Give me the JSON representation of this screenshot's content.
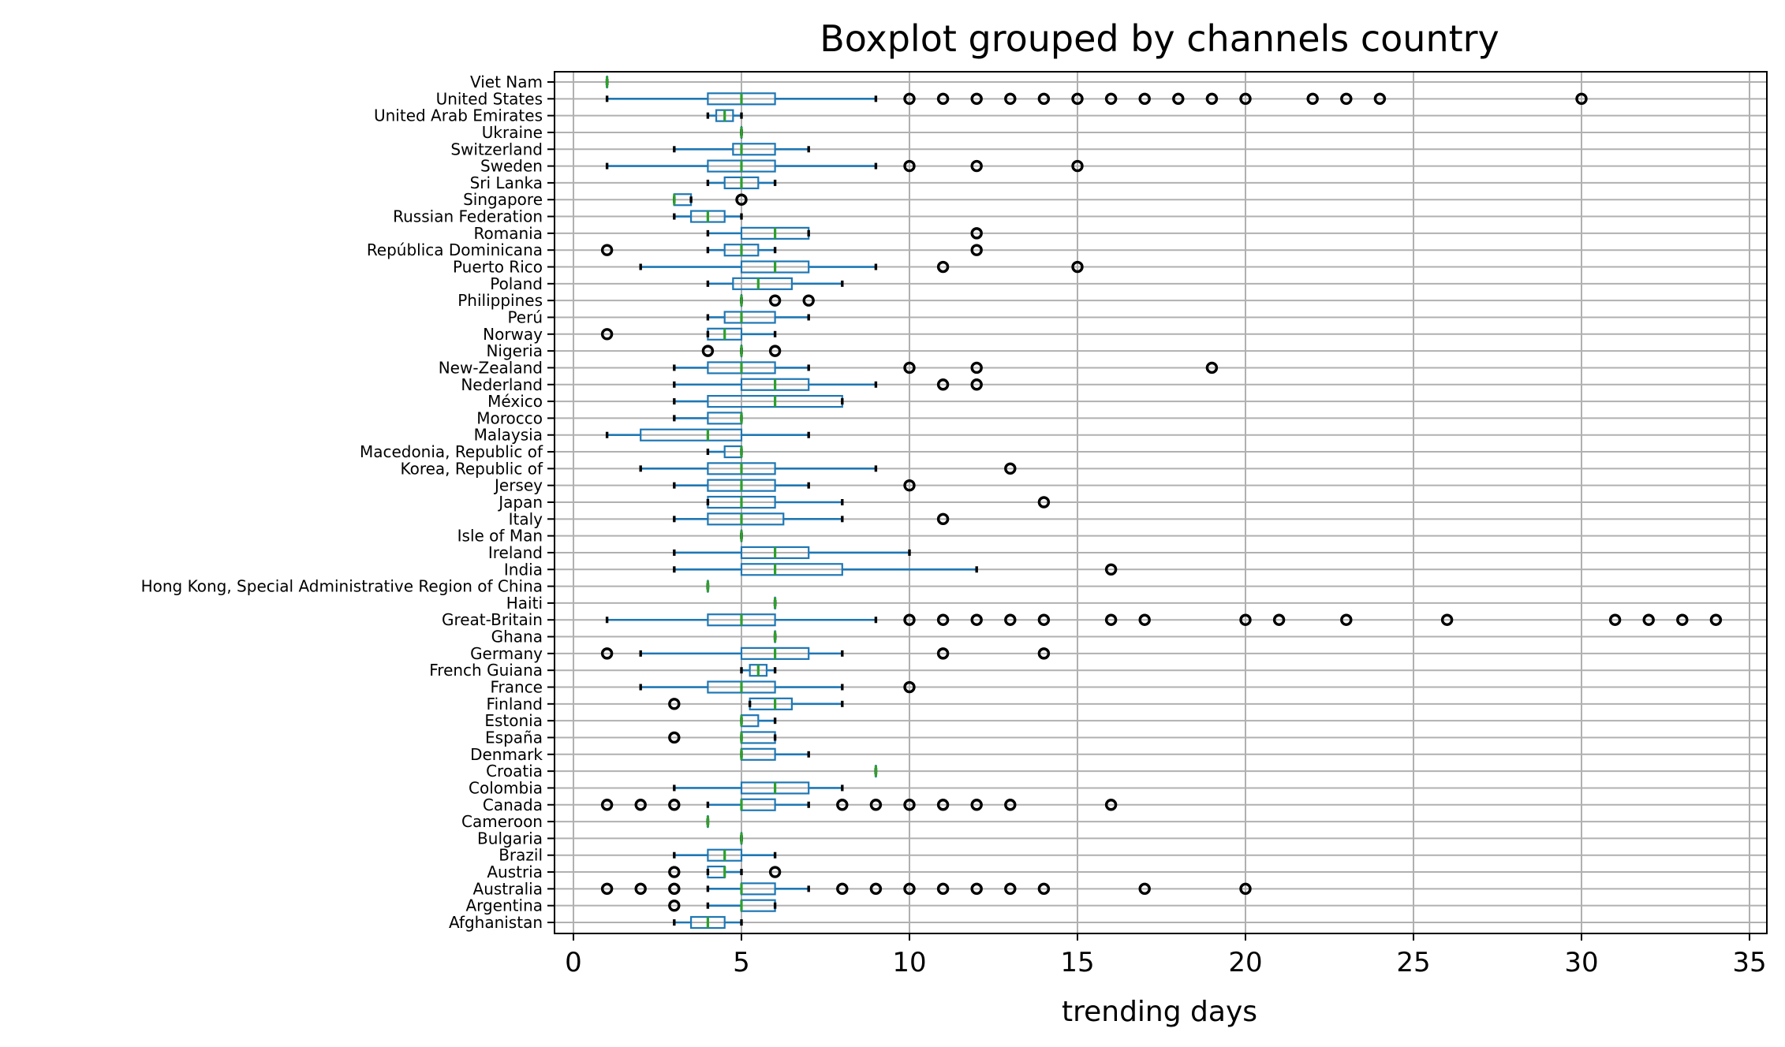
{
  "chart_data": {
    "type": "boxplot",
    "orientation": "horizontal",
    "title": "Boxplot grouped by channels country",
    "xlabel": "trending days",
    "xlim": [
      -0.7,
      35.6
    ],
    "xticks": [
      0,
      5,
      10,
      15,
      20,
      25,
      30,
      35
    ],
    "grid": true,
    "colors": {
      "box": "#1f77b4",
      "median": "#2ca02c",
      "cap": "#000000",
      "flier": "#000000",
      "grid": "#b0b0b0"
    },
    "groups": [
      {
        "label": "Afghanistan",
        "whislo": 3,
        "q1": 3.5,
        "median": 4,
        "q3": 4.5,
        "whishi": 5,
        "fliers": []
      },
      {
        "label": "Argentina",
        "whislo": 4,
        "q1": 5,
        "median": 5,
        "q3": 6,
        "whishi": 6,
        "fliers": [
          3
        ]
      },
      {
        "label": "Australia",
        "whislo": 4,
        "q1": 5,
        "median": 5,
        "q3": 6,
        "whishi": 7,
        "fliers": [
          1,
          2,
          3,
          8,
          9,
          10,
          11,
          12,
          13,
          14,
          17,
          20
        ]
      },
      {
        "label": "Austria",
        "whislo": 4,
        "q1": 4,
        "median": 4.5,
        "q3": 4.5,
        "whishi": 5,
        "fliers": [
          3,
          6
        ]
      },
      {
        "label": "Brazil",
        "whislo": 3,
        "q1": 4,
        "median": 4.5,
        "q3": 5,
        "whishi": 6,
        "fliers": []
      },
      {
        "label": "Bulgaria",
        "whislo": 5,
        "q1": 5,
        "median": 5,
        "q3": 5,
        "whishi": 5,
        "fliers": []
      },
      {
        "label": "Cameroon",
        "whislo": 4,
        "q1": 4,
        "median": 4,
        "q3": 4,
        "whishi": 4,
        "fliers": []
      },
      {
        "label": "Canada",
        "whislo": 4,
        "q1": 5,
        "median": 5,
        "q3": 6,
        "whishi": 7,
        "fliers": [
          1,
          2,
          3,
          8,
          9,
          10,
          11,
          12,
          13,
          16
        ]
      },
      {
        "label": "Colombia",
        "whislo": 3,
        "q1": 5,
        "median": 6,
        "q3": 7,
        "whishi": 8,
        "fliers": []
      },
      {
        "label": "Croatia",
        "whislo": 9,
        "q1": 9,
        "median": 9,
        "q3": 9,
        "whishi": 9,
        "fliers": []
      },
      {
        "label": "Denmark",
        "whislo": 5,
        "q1": 5,
        "median": 5,
        "q3": 6,
        "whishi": 7,
        "fliers": []
      },
      {
        "label": "España",
        "whislo": 5,
        "q1": 5,
        "median": 5,
        "q3": 6,
        "whishi": 6,
        "fliers": [
          3
        ]
      },
      {
        "label": "Estonia",
        "whislo": 5,
        "q1": 5,
        "median": 5,
        "q3": 5.5,
        "whishi": 6,
        "fliers": []
      },
      {
        "label": "Finland",
        "whislo": 5.25,
        "q1": 5.25,
        "median": 6,
        "q3": 6.5,
        "whishi": 8,
        "fliers": [
          3
        ]
      },
      {
        "label": "France",
        "whislo": 2,
        "q1": 4,
        "median": 5,
        "q3": 6,
        "whishi": 8,
        "fliers": [
          10
        ]
      },
      {
        "label": "French Guiana",
        "whislo": 5,
        "q1": 5.25,
        "median": 5.5,
        "q3": 5.75,
        "whishi": 6,
        "fliers": []
      },
      {
        "label": "Germany",
        "whislo": 2,
        "q1": 5,
        "median": 6,
        "q3": 7,
        "whishi": 8,
        "fliers": [
          1,
          11,
          14
        ]
      },
      {
        "label": "Ghana",
        "whislo": 6,
        "q1": 6,
        "median": 6,
        "q3": 6,
        "whishi": 6,
        "fliers": []
      },
      {
        "label": "Great-Britain",
        "whislo": 1,
        "q1": 4,
        "median": 5,
        "q3": 6,
        "whishi": 9,
        "fliers": [
          10,
          11,
          12,
          13,
          14,
          16,
          17,
          20,
          21,
          23,
          26,
          31,
          32,
          33,
          34
        ]
      },
      {
        "label": "Haiti",
        "whislo": 6,
        "q1": 6,
        "median": 6,
        "q3": 6,
        "whishi": 6,
        "fliers": []
      },
      {
        "label": "Hong Kong, Special Administrative Region of China",
        "whislo": 4,
        "q1": 4,
        "median": 4,
        "q3": 4,
        "whishi": 4,
        "fliers": []
      },
      {
        "label": "India",
        "whislo": 3,
        "q1": 5,
        "median": 6,
        "q3": 8,
        "whishi": 12,
        "fliers": [
          16
        ]
      },
      {
        "label": "Ireland",
        "whislo": 3,
        "q1": 5,
        "median": 6,
        "q3": 7,
        "whishi": 10,
        "fliers": []
      },
      {
        "label": "Isle of Man",
        "whislo": 5,
        "q1": 5,
        "median": 5,
        "q3": 5,
        "whishi": 5,
        "fliers": []
      },
      {
        "label": "Italy",
        "whislo": 3,
        "q1": 4,
        "median": 5,
        "q3": 6.25,
        "whishi": 8,
        "fliers": [
          11
        ]
      },
      {
        "label": "Japan",
        "whislo": 4,
        "q1": 4,
        "median": 5,
        "q3": 6,
        "whishi": 8,
        "fliers": [
          14
        ]
      },
      {
        "label": "Jersey",
        "whislo": 3,
        "q1": 4,
        "median": 5,
        "q3": 6,
        "whishi": 7,
        "fliers": [
          10
        ]
      },
      {
        "label": "Korea, Republic of",
        "whislo": 2,
        "q1": 4,
        "median": 5,
        "q3": 6,
        "whishi": 9,
        "fliers": [
          13
        ]
      },
      {
        "label": "Macedonia, Republic of",
        "whislo": 4,
        "q1": 4.5,
        "median": 5,
        "q3": 5,
        "whishi": 5,
        "fliers": []
      },
      {
        "label": "Malaysia",
        "whislo": 1,
        "q1": 2,
        "median": 4,
        "q3": 5,
        "whishi": 7,
        "fliers": []
      },
      {
        "label": "Morocco",
        "whislo": 3,
        "q1": 4,
        "median": 5,
        "q3": 5,
        "whishi": 5,
        "fliers": []
      },
      {
        "label": "México",
        "whislo": 3,
        "q1": 4,
        "median": 6,
        "q3": 8,
        "whishi": 8,
        "fliers": []
      },
      {
        "label": "Nederland",
        "whislo": 3,
        "q1": 5,
        "median": 6,
        "q3": 7,
        "whishi": 9,
        "fliers": [
          11,
          12
        ]
      },
      {
        "label": "New-Zealand",
        "whislo": 3,
        "q1": 4,
        "median": 5,
        "q3": 6,
        "whishi": 7,
        "fliers": [
          10,
          12,
          19
        ]
      },
      {
        "label": "Nigeria",
        "whislo": 5,
        "q1": 5,
        "median": 5,
        "q3": 5,
        "whishi": 5,
        "fliers": [
          4,
          6
        ]
      },
      {
        "label": "Norway",
        "whislo": 4,
        "q1": 4,
        "median": 4.5,
        "q3": 5,
        "whishi": 6,
        "fliers": [
          1
        ]
      },
      {
        "label": "Perú",
        "whislo": 4,
        "q1": 4.5,
        "median": 5,
        "q3": 6,
        "whishi": 7,
        "fliers": []
      },
      {
        "label": "Philippines",
        "whislo": 5,
        "q1": 5,
        "median": 5,
        "q3": 5,
        "whishi": 5,
        "fliers": [
          6,
          7
        ]
      },
      {
        "label": "Poland",
        "whislo": 4,
        "q1": 4.75,
        "median": 5.5,
        "q3": 6.5,
        "whishi": 8,
        "fliers": []
      },
      {
        "label": "Puerto Rico",
        "whislo": 2,
        "q1": 5,
        "median": 6,
        "q3": 7,
        "whishi": 9,
        "fliers": [
          11,
          15
        ]
      },
      {
        "label": "República Dominicana",
        "whislo": 4,
        "q1": 4.5,
        "median": 5,
        "q3": 5.5,
        "whishi": 6,
        "fliers": [
          1,
          12
        ]
      },
      {
        "label": "Romania",
        "whislo": 4,
        "q1": 5,
        "median": 6,
        "q3": 7,
        "whishi": 7,
        "fliers": [
          12
        ]
      },
      {
        "label": "Russian Federation",
        "whislo": 3,
        "q1": 3.5,
        "median": 4,
        "q3": 4.5,
        "whishi": 5,
        "fliers": []
      },
      {
        "label": "Singapore",
        "whislo": 3,
        "q1": 3,
        "median": 3,
        "q3": 3.5,
        "whishi": 3.5,
        "fliers": [
          5
        ]
      },
      {
        "label": "Sri Lanka",
        "whislo": 4,
        "q1": 4.5,
        "median": 5,
        "q3": 5.5,
        "whishi": 6,
        "fliers": []
      },
      {
        "label": "Sweden",
        "whislo": 1,
        "q1": 4,
        "median": 5,
        "q3": 6,
        "whishi": 9,
        "fliers": [
          10,
          12,
          15
        ]
      },
      {
        "label": "Switzerland",
        "whislo": 3,
        "q1": 4.75,
        "median": 5,
        "q3": 6,
        "whishi": 7,
        "fliers": []
      },
      {
        "label": "Ukraine",
        "whislo": 5,
        "q1": 5,
        "median": 5,
        "q3": 5,
        "whishi": 5,
        "fliers": []
      },
      {
        "label": "United Arab Emirates",
        "whislo": 4,
        "q1": 4.25,
        "median": 4.5,
        "q3": 4.75,
        "whishi": 5,
        "fliers": []
      },
      {
        "label": "United States",
        "whislo": 1,
        "q1": 4,
        "median": 5,
        "q3": 6,
        "whishi": 9,
        "fliers": [
          10,
          11,
          12,
          13,
          14,
          15,
          16,
          17,
          18,
          19,
          20,
          22,
          23,
          24,
          30
        ]
      },
      {
        "label": "Viet Nam",
        "whislo": 1,
        "q1": 1,
        "median": 1,
        "q3": 1,
        "whishi": 1,
        "fliers": []
      }
    ]
  }
}
